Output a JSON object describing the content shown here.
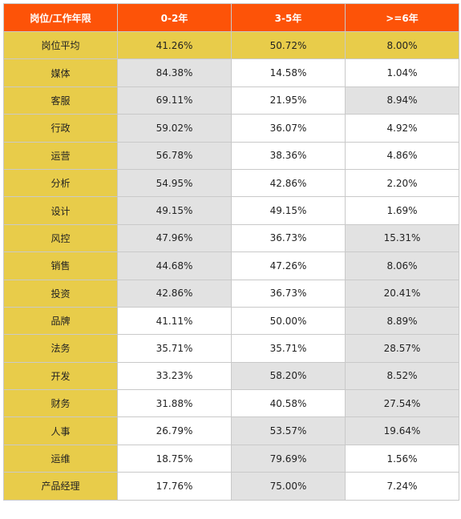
{
  "header": [
    "岗位/工作年限",
    "0-2年",
    "3-5年",
    ">=6年"
  ],
  "average_row": {
    "label": "岗位平均",
    "values": [
      "41.26%",
      "50.72%",
      "8.00%"
    ]
  },
  "rows": [
    {
      "label": "媒体",
      "values": [
        "84.38%",
        "14.58%",
        "1.04%"
      ],
      "highlight": [
        true,
        false,
        false
      ]
    },
    {
      "label": "客服",
      "values": [
        "69.11%",
        "21.95%",
        "8.94%"
      ],
      "highlight": [
        true,
        false,
        true
      ]
    },
    {
      "label": "行政",
      "values": [
        "59.02%",
        "36.07%",
        "4.92%"
      ],
      "highlight": [
        true,
        false,
        false
      ]
    },
    {
      "label": "运营",
      "values": [
        "56.78%",
        "38.36%",
        "4.86%"
      ],
      "highlight": [
        true,
        false,
        false
      ]
    },
    {
      "label": "分析",
      "values": [
        "54.95%",
        "42.86%",
        "2.20%"
      ],
      "highlight": [
        true,
        false,
        false
      ]
    },
    {
      "label": "设计",
      "values": [
        "49.15%",
        "49.15%",
        "1.69%"
      ],
      "highlight": [
        true,
        false,
        false
      ]
    },
    {
      "label": "风控",
      "values": [
        "47.96%",
        "36.73%",
        "15.31%"
      ],
      "highlight": [
        true,
        false,
        true
      ]
    },
    {
      "label": "销售",
      "values": [
        "44.68%",
        "47.26%",
        "8.06%"
      ],
      "highlight": [
        true,
        false,
        true
      ]
    },
    {
      "label": "投资",
      "values": [
        "42.86%",
        "36.73%",
        "20.41%"
      ],
      "highlight": [
        true,
        false,
        true
      ]
    },
    {
      "label": "品牌",
      "values": [
        "41.11%",
        "50.00%",
        "8.89%"
      ],
      "highlight": [
        false,
        false,
        true
      ]
    },
    {
      "label": "法务",
      "values": [
        "35.71%",
        "35.71%",
        "28.57%"
      ],
      "highlight": [
        false,
        false,
        true
      ]
    },
    {
      "label": "开发",
      "values": [
        "33.23%",
        "58.20%",
        "8.52%"
      ],
      "highlight": [
        false,
        true,
        true
      ]
    },
    {
      "label": "财务",
      "values": [
        "31.88%",
        "40.58%",
        "27.54%"
      ],
      "highlight": [
        false,
        false,
        true
      ]
    },
    {
      "label": "人事",
      "values": [
        "26.79%",
        "53.57%",
        "19.64%"
      ],
      "highlight": [
        false,
        true,
        true
      ]
    },
    {
      "label": "运维",
      "values": [
        "18.75%",
        "79.69%",
        "1.56%"
      ],
      "highlight": [
        false,
        true,
        false
      ]
    },
    {
      "label": "产品经理",
      "values": [
        "17.76%",
        "75.00%",
        "7.24%"
      ],
      "highlight": [
        false,
        true,
        false
      ]
    }
  ],
  "colors": {
    "header_bg": "#fd5308",
    "label_bg": "#e8cc4a",
    "highlight_bg": "#e2e2e2",
    "border": "#c9c9c9"
  }
}
